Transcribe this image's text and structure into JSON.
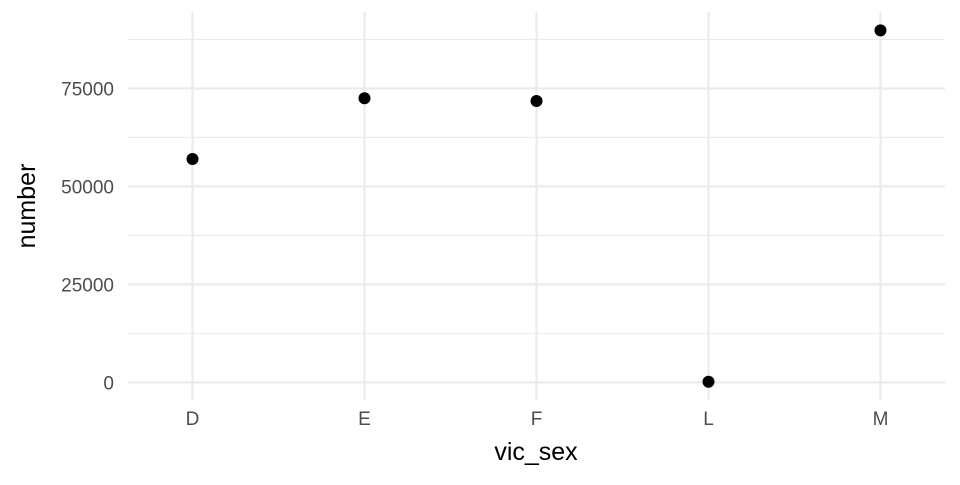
{
  "chart_data": {
    "type": "scatter",
    "title": "",
    "xlabel": "vic_sex",
    "ylabel": "number",
    "categories": [
      "D",
      "E",
      "F",
      "L",
      "M"
    ],
    "values": [
      57000,
      72500,
      71800,
      150,
      89800
    ],
    "yticks": [
      0,
      25000,
      50000,
      75000
    ],
    "yticklabels": [
      "0",
      "25000",
      "50000",
      "75000"
    ],
    "ylim": [
      -4500,
      94500
    ],
    "grid": true,
    "legend": "none",
    "point_color": "#000000",
    "grid_color": "#ebebeb"
  }
}
